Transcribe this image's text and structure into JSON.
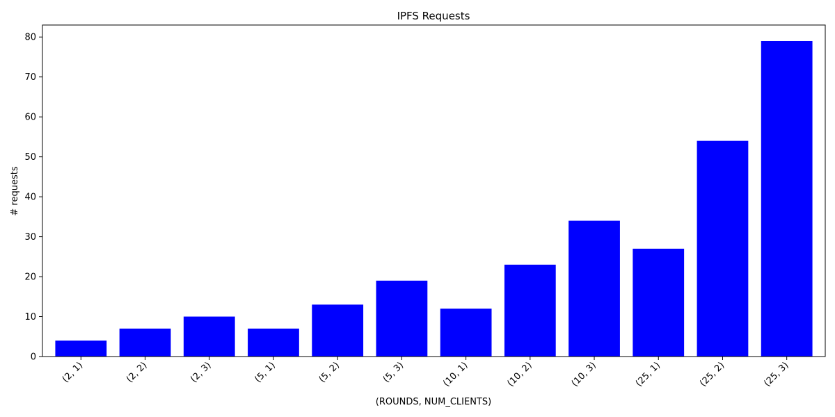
{
  "chart_data": {
    "type": "bar",
    "title": "IPFS Requests",
    "xlabel": "(ROUNDS, NUM_CLIENTS)",
    "ylabel": "# requests",
    "categories": [
      "(2, 1)",
      "(2, 2)",
      "(2, 3)",
      "(5, 1)",
      "(5, 2)",
      "(5, 3)",
      "(10, 1)",
      "(10, 2)",
      "(10, 3)",
      "(25, 1)",
      "(25, 2)",
      "(25, 3)"
    ],
    "values": [
      4,
      7,
      10,
      7,
      13,
      19,
      12,
      23,
      34,
      27,
      54,
      79
    ],
    "ylim": [
      0,
      83
    ],
    "yticks": [
      0,
      10,
      20,
      30,
      40,
      50,
      60,
      70,
      80
    ],
    "bar_color": "#0000ff",
    "grid": false,
    "legend": "none"
  }
}
